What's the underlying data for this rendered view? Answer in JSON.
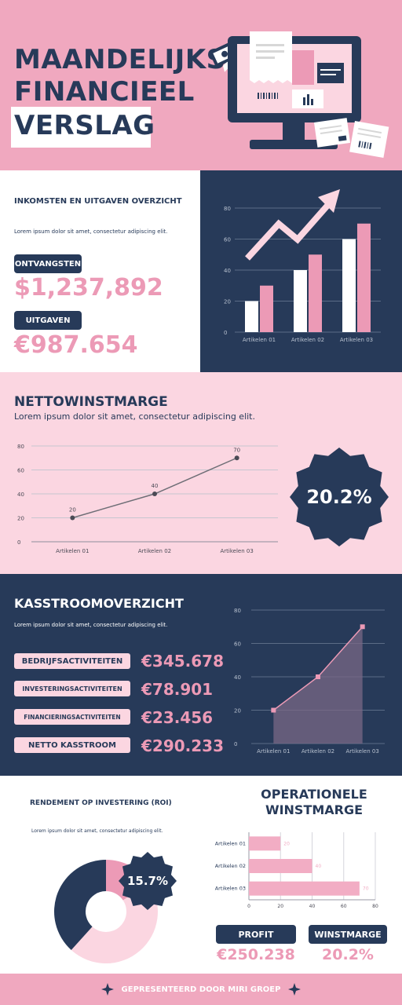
{
  "header": {
    "title_line1": "MAANDELIJKS",
    "title_line2": "FINANCIEEL",
    "title_line3": "VERSLAG"
  },
  "income_section": {
    "heading": "INKOMSTEN EN UITGAVEN OVERZICHT",
    "lorem": "Lorem ipsum dolor sit amet, consectetur adipiscing elit.",
    "received_label": "ONTVANGSTEN",
    "received_value": "$1,237,892",
    "expenses_label": "UITGAVEN",
    "expenses_value": "€987.654"
  },
  "net_margin_section": {
    "heading": "NETTOWINSTMARGE",
    "lorem": "Lorem ipsum dolor sit amet, consectetur adipiscing elit.",
    "badge_value": "20.2%"
  },
  "cashflow_section": {
    "heading": "KASSTROOMOVERZICHT",
    "lorem": "Lorem ipsum dolor sit amet, consectetur adipiscing elit.",
    "items": [
      {
        "label": "BEDRIJFSACTIVITEITEN",
        "value": "€345.678"
      },
      {
        "label": "INVESTERINGSACTIVITEITEN",
        "value": "€78.901"
      },
      {
        "label": "FINANCIERINGSACTIVITEITEN",
        "value": "€23.456"
      },
      {
        "label": "NETTO KASSTROOM",
        "value": "€290.233"
      }
    ]
  },
  "roi_section": {
    "heading": "RENDEMENT OP INVESTERING (ROI)",
    "lorem": "Lorem ipsum dolor sit amet, consectetur adipiscing elit.",
    "badge_value": "15.7%"
  },
  "operational_section": {
    "heading_line1": "OPERATIONELE",
    "heading_line2": "WINSTMARGE",
    "profit_label": "PROFIT",
    "profit_value": "€250.238",
    "margin_label": "WINSTMARGE",
    "margin_value": "20.2%"
  },
  "footer": {
    "text": "GEPRESENTEERD DOOR MIRI GROEP"
  },
  "colors": {
    "navy": "#273a59",
    "pink": "#ec9ab6",
    "light_pink": "#fbd6e1",
    "header_pink": "#f0a8bf"
  },
  "chart_data": [
    {
      "id": "income-bar",
      "type": "bar",
      "categories": [
        "Artikelen 01",
        "Artikelen 02",
        "Artikelen 03"
      ],
      "series": [
        {
          "values": [
            20,
            40,
            60
          ]
        },
        {
          "values": [
            30,
            50,
            70
          ]
        }
      ],
      "yticks": [
        0,
        20,
        40,
        60,
        80
      ],
      "ylim": [
        0,
        80
      ],
      "grid": true
    },
    {
      "id": "net-margin-line",
      "type": "line",
      "categories": [
        "Artikelen 01",
        "Artikelen 02",
        "Artikelen 03"
      ],
      "values": [
        20,
        40,
        70
      ],
      "yticks": [
        0,
        20,
        40,
        60,
        80
      ],
      "ylim": [
        0,
        80
      ],
      "grid": true
    },
    {
      "id": "cashflow-area",
      "type": "area",
      "categories": [
        "Artikelen 01",
        "Artikelen 02",
        "Artikelen 03"
      ],
      "values": [
        20,
        40,
        70
      ],
      "yticks": [
        0,
        20,
        40,
        60,
        80
      ],
      "ylim": [
        0,
        80
      ],
      "grid": true
    },
    {
      "id": "roi-donut",
      "type": "pie",
      "slices": [
        {
          "value": 15.7,
          "color": "#ec9ab6"
        },
        {
          "value": 46,
          "color": "#fbd6e1"
        },
        {
          "value": 38.3,
          "color": "#273a59"
        }
      ]
    },
    {
      "id": "operational-hbar",
      "type": "bar",
      "orientation": "horizontal",
      "categories": [
        "Artikelen 01",
        "Artikelen 02",
        "Artikelen 03"
      ],
      "values": [
        20,
        40,
        70
      ],
      "xticks": [
        0,
        20,
        40,
        60,
        80
      ],
      "xlim": [
        0,
        80
      ],
      "grid": true
    }
  ]
}
